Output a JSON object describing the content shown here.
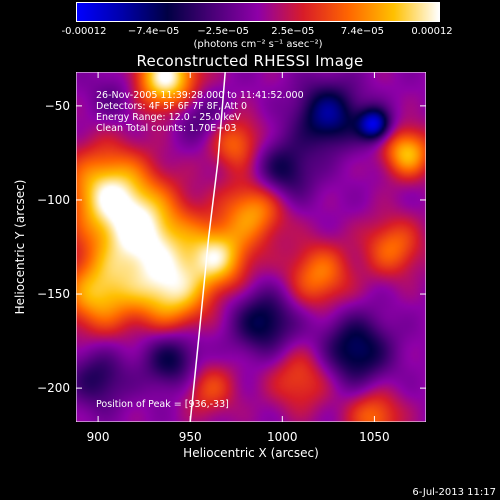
{
  "colorbar": {
    "ticks": [
      "-0.00012",
      "−7.4e−05",
      "−2.5e−05",
      "2.5e−05",
      "7.4e−05",
      "0.00012"
    ],
    "units": "(photons cm⁻² s⁻¹ asec⁻²)",
    "colormap": [
      "#0000ff",
      "#0000aa",
      "#000044",
      "#4a0078",
      "#8e00a8",
      "#d81c28",
      "#ff6600",
      "#ffc000",
      "#ffffff"
    ]
  },
  "chart_data": {
    "type": "heatmap",
    "title": "Reconstructed RHESSI Image",
    "xlabel": "Heliocentric X (arcsec)",
    "ylabel": "Heliocentric Y (arcsec)",
    "xlim": [
      888,
      1078
    ],
    "ylim": [
      -218,
      -32
    ],
    "xticks": [
      900,
      950,
      1000,
      1050
    ],
    "yticks": [
      -50,
      -100,
      -150,
      -200
    ],
    "zlim": [
      -0.00012,
      0.00012
    ],
    "info_lines": [
      "26-Nov-2005 11:39:28.000 to 11:41:52.000",
      "Detectors: 4F 5F 6F 7F 8F, Att 0",
      "Energy Range: 12.0 - 25.0 keV",
      "Clean     Total counts: 1.70E+03"
    ],
    "peak_label": "Position of Peak = [936,-33]",
    "peak": [
      936,
      -33
    ],
    "limb_curve": [
      [
        950,
        -218
      ],
      [
        955,
        -170
      ],
      [
        960,
        -120
      ],
      [
        965,
        -80
      ],
      [
        969,
        -32
      ]
    ],
    "blobs": [
      {
        "x": 937,
        "y": -35,
        "amp": 1.0,
        "r": 12
      },
      {
        "x": 905,
        "y": -95,
        "amp": 0.8,
        "r": 16
      },
      {
        "x": 925,
        "y": -120,
        "amp": 0.95,
        "r": 18
      },
      {
        "x": 900,
        "y": -150,
        "amp": 0.7,
        "r": 14
      },
      {
        "x": 940,
        "y": -150,
        "amp": 0.75,
        "r": 14
      },
      {
        "x": 965,
        "y": -130,
        "amp": 0.8,
        "r": 12
      },
      {
        "x": 985,
        "y": -105,
        "amp": 0.65,
        "r": 12
      },
      {
        "x": 975,
        "y": -70,
        "amp": 0.5,
        "r": 10
      },
      {
        "x": 1020,
        "y": -140,
        "amp": 0.55,
        "r": 12
      },
      {
        "x": 1060,
        "y": -125,
        "amp": 0.5,
        "r": 11
      },
      {
        "x": 1068,
        "y": -75,
        "amp": 0.75,
        "r": 9
      },
      {
        "x": 1010,
        "y": -195,
        "amp": 0.4,
        "r": 12
      },
      {
        "x": 1050,
        "y": -215,
        "amp": 0.5,
        "r": 10
      },
      {
        "x": 960,
        "y": -200,
        "amp": 0.4,
        "r": 10
      },
      {
        "x": 1025,
        "y": -55,
        "amp": -0.7,
        "r": 12
      },
      {
        "x": 1050,
        "y": -60,
        "amp": -0.9,
        "r": 6
      },
      {
        "x": 1000,
        "y": -85,
        "amp": -0.5,
        "r": 12
      },
      {
        "x": 990,
        "y": -165,
        "amp": -0.55,
        "r": 12
      },
      {
        "x": 1040,
        "y": -180,
        "amp": -0.6,
        "r": 13
      },
      {
        "x": 940,
        "y": -185,
        "amp": -0.5,
        "r": 11
      },
      {
        "x": 900,
        "y": -195,
        "amp": -0.4,
        "r": 11
      },
      {
        "x": 955,
        "y": -55,
        "amp": -0.3,
        "r": 10
      },
      {
        "x": 910,
        "y": -45,
        "amp": -0.2,
        "r": 10
      }
    ]
  },
  "footer": "6-Jul-2013 11:17"
}
